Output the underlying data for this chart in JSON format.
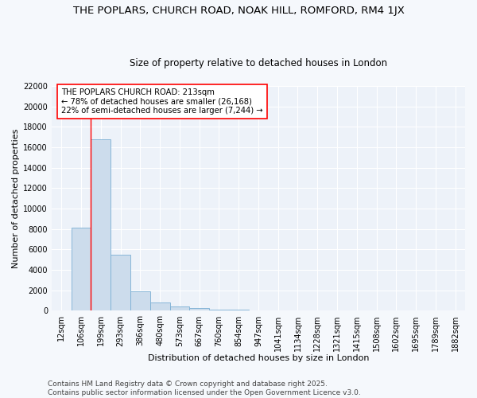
{
  "title": "THE POPLARS, CHURCH ROAD, NOAK HILL, ROMFORD, RM4 1JX",
  "subtitle": "Size of property relative to detached houses in London",
  "xlabel": "Distribution of detached houses by size in London",
  "ylabel": "Number of detached properties",
  "categories": [
    "12sqm",
    "106sqm",
    "199sqm",
    "293sqm",
    "386sqm",
    "480sqm",
    "573sqm",
    "667sqm",
    "760sqm",
    "854sqm",
    "947sqm",
    "1041sqm",
    "1134sqm",
    "1228sqm",
    "1321sqm",
    "1415sqm",
    "1508sqm",
    "1602sqm",
    "1695sqm",
    "1789sqm",
    "1882sqm"
  ],
  "values": [
    0,
    8100,
    16800,
    5500,
    1900,
    800,
    400,
    250,
    100,
    100,
    0,
    0,
    0,
    0,
    0,
    0,
    0,
    0,
    0,
    0,
    0
  ],
  "bar_color": "#ccdcec",
  "bar_edgecolor": "#7bafd4",
  "redline_index": 2,
  "annotation_text": "THE POPLARS CHURCH ROAD: 213sqm\n← 78% of detached houses are smaller (26,168)\n22% of semi-detached houses are larger (7,244) →",
  "ylim": [
    0,
    22000
  ],
  "yticks": [
    0,
    2000,
    4000,
    6000,
    8000,
    10000,
    12000,
    14000,
    16000,
    18000,
    20000,
    22000
  ],
  "footer": "Contains HM Land Registry data © Crown copyright and database right 2025.\nContains public sector information licensed under the Open Government Licence v3.0.",
  "background_color": "#f5f8fc",
  "plot_bg_color": "#edf2f9",
  "grid_color": "#ffffff",
  "title_fontsize": 9.5,
  "subtitle_fontsize": 8.5,
  "label_fontsize": 8,
  "tick_fontsize": 7,
  "footer_fontsize": 6.5
}
